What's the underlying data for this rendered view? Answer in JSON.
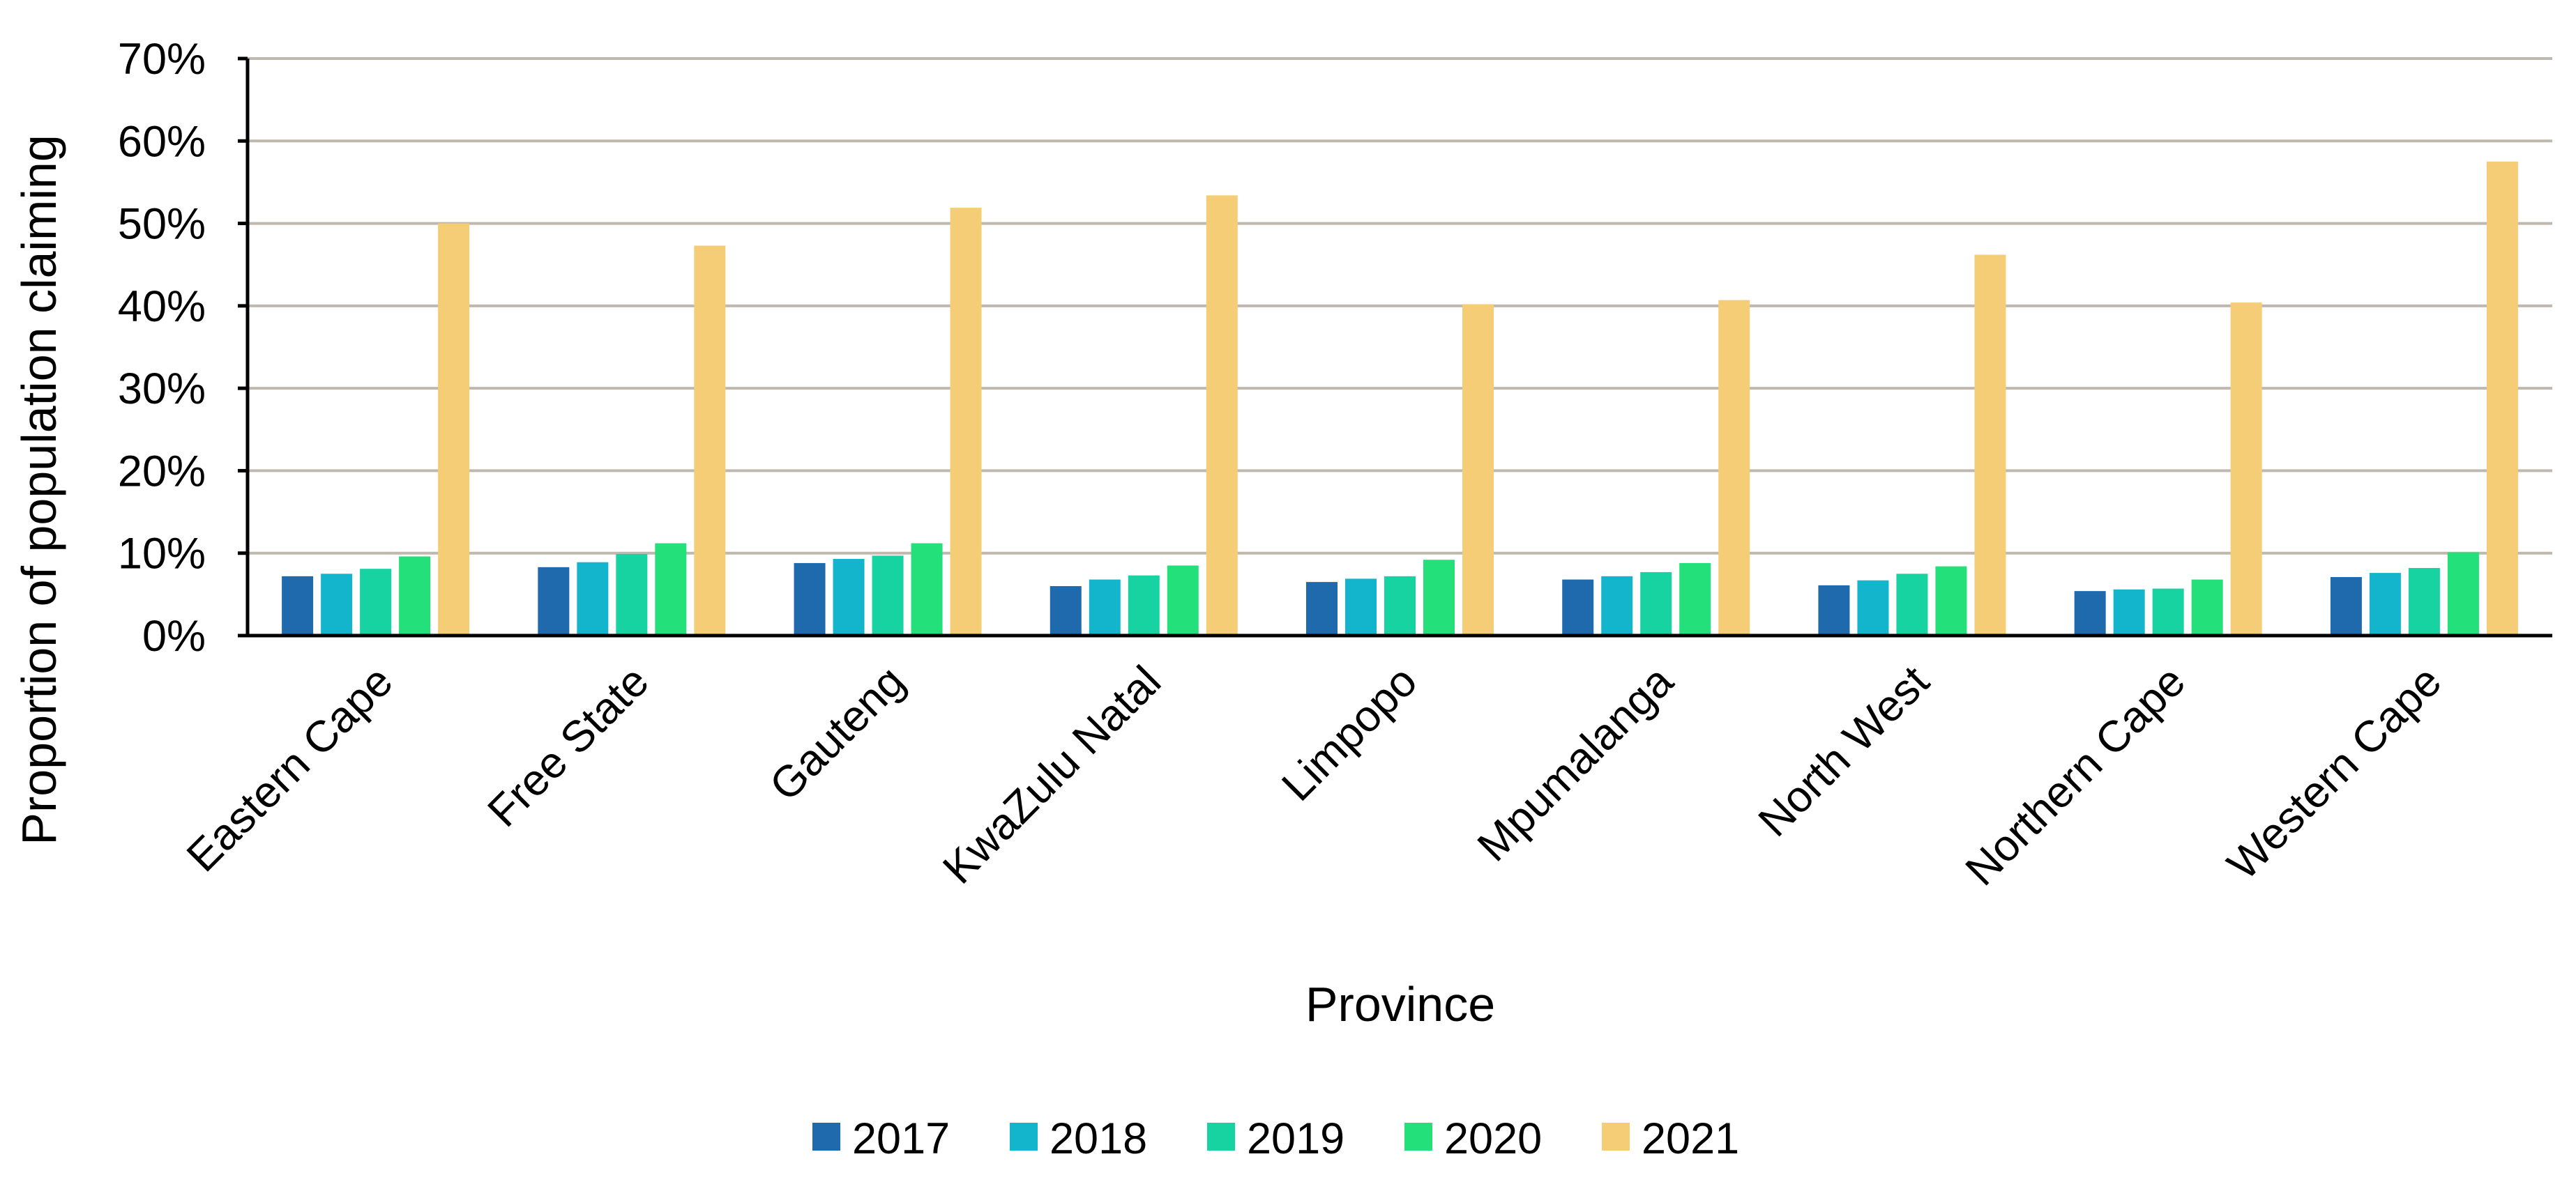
{
  "chart_data": {
    "type": "bar",
    "title": "",
    "xlabel": "Province",
    "ylabel": "Proportion of population claiming",
    "ylim": [
      0,
      0.7
    ],
    "yticks": [
      0,
      0.1,
      0.2,
      0.3,
      0.4,
      0.5,
      0.6,
      0.7
    ],
    "ytick_labels": [
      "0%",
      "10%",
      "20%",
      "30%",
      "40%",
      "50%",
      "60%",
      "70%"
    ],
    "grid": true,
    "legend_position": "bottom",
    "categories": [
      "Eastern Cape",
      "Free State",
      "Gauteng",
      "KwaZulu Natal",
      "Limpopo",
      "Mpumalanga",
      "North West",
      "Northern Cape",
      "Western Cape"
    ],
    "series": [
      {
        "name": "2017",
        "color": "#1f6aad",
        "values": [
          0.072,
          0.083,
          0.088,
          0.06,
          0.065,
          0.068,
          0.061,
          0.054,
          0.071
        ]
      },
      {
        "name": "2018",
        "color": "#12b5cb",
        "values": [
          0.075,
          0.089,
          0.093,
          0.068,
          0.069,
          0.072,
          0.067,
          0.056,
          0.076
        ]
      },
      {
        "name": "2019",
        "color": "#17d3a1",
        "values": [
          0.081,
          0.099,
          0.097,
          0.073,
          0.072,
          0.077,
          0.075,
          0.057,
          0.082
        ]
      },
      {
        "name": "2020",
        "color": "#23e07a",
        "values": [
          0.096,
          0.112,
          0.112,
          0.085,
          0.092,
          0.088,
          0.084,
          0.068,
          0.101
        ]
      },
      {
        "name": "2021",
        "color": "#f6cd77",
        "values": [
          0.5,
          0.473,
          0.519,
          0.534,
          0.402,
          0.407,
          0.462,
          0.404,
          0.575
        ]
      }
    ]
  }
}
